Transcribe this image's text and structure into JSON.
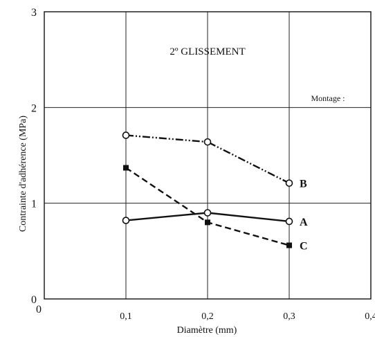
{
  "chart_data": {
    "type": "line",
    "title": "2º GLISSEMENT",
    "xlabel": "Diamètre (mm)",
    "ylabel": "Contrainte d'adhérence (MPa)",
    "xlim": [
      0,
      0.4
    ],
    "ylim": [
      0,
      3
    ],
    "x_ticks": [
      0.1,
      0.2,
      0.3,
      0.4
    ],
    "x_tick_labels": [
      "0,1",
      "0,2",
      "0,3",
      "0,4"
    ],
    "y_ticks": [
      0,
      1,
      2,
      3
    ],
    "y_tick_labels": [
      "0",
      "1",
      "2",
      "3"
    ],
    "grid": true,
    "legend_title": "Montage :",
    "legend_placement": "right",
    "series": [
      {
        "name": "A",
        "style": "solid",
        "marker": "open-circle",
        "color": "#111111",
        "x": [
          0.1,
          0.2,
          0.3
        ],
        "y": [
          0.82,
          0.9,
          0.81
        ]
      },
      {
        "name": "B",
        "style": "dash-dot-dot",
        "marker": "open-circle",
        "color": "#111111",
        "x": [
          0.1,
          0.2,
          0.3
        ],
        "y": [
          1.71,
          1.64,
          1.21
        ]
      },
      {
        "name": "C",
        "style": "dashed",
        "marker": "filled-square",
        "color": "#111111",
        "x": [
          0.1,
          0.2,
          0.3
        ],
        "y": [
          1.37,
          0.8,
          0.56
        ]
      }
    ]
  }
}
